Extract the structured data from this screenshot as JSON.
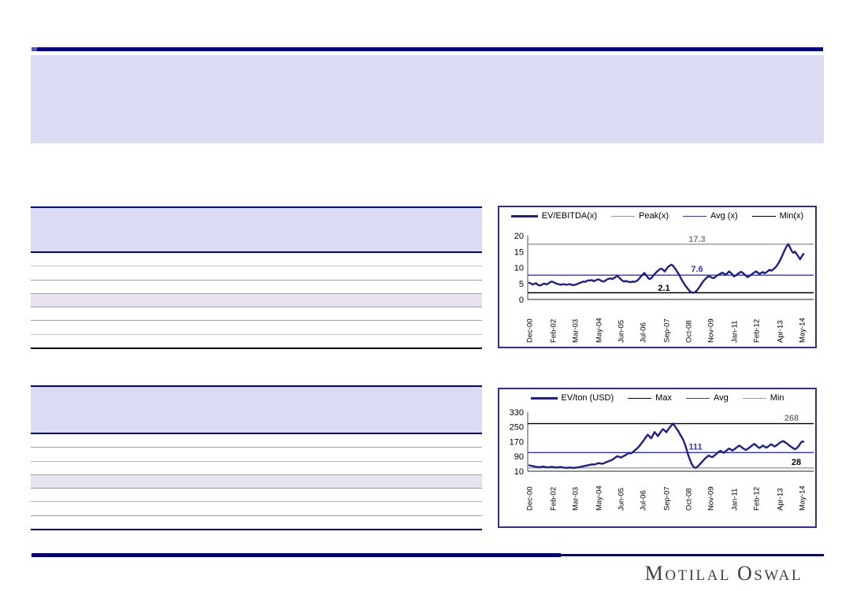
{
  "slide": {
    "banner_text": "",
    "logo": {
      "full_text": "MOTILAL OSWAL",
      "m1": "M",
      "r1": "OTILAL",
      "m2": "O",
      "r2": "SWAL"
    }
  },
  "colors": {
    "navy_rule": "#00008B",
    "banner_lavender": "#DBDBF5",
    "shaded_row": "#E7E3EE",
    "chart_border": "#2F2F9D",
    "series_navy": "#1F1F8C",
    "avg_blue": "#3333CC",
    "peak_gray": "#969696",
    "min_black": "#000000",
    "logo_charcoal": "#3E3E44"
  },
  "tables": [
    {
      "name": "upper-left-table",
      "header_text": "",
      "row_count": 7,
      "shaded_row_index": 3,
      "bottom_border": "black",
      "cells_visible": false
    },
    {
      "name": "lower-left-table",
      "header_text": "",
      "row_count": 7,
      "shaded_row_index": 3,
      "bottom_border": "navy",
      "cells_visible": false
    }
  ],
  "chart_data": [
    {
      "type": "line",
      "title": "",
      "legend": [
        {
          "label": "EV/EBITDA(x)",
          "color": "#1F1F8C",
          "thick": true
        },
        {
          "label": "Peak(x)",
          "color": "#969696",
          "thick": false
        },
        {
          "label": "Avg (x)",
          "color": "#3333CC",
          "thick": false
        },
        {
          "label": "Min(x)",
          "color": "#000000",
          "thick": false
        }
      ],
      "ylim": [
        0,
        20
      ],
      "yticks": [
        20,
        15,
        10,
        5,
        0
      ],
      "x_tick_labels": [
        "Dec-00",
        "Feb-02",
        "Mar-03",
        "May-04",
        "Jun-05",
        "Jul-06",
        "Sep-07",
        "Oct-08",
        "Nov-09",
        "Jan-11",
        "Feb-12",
        "Apr-13",
        "May-14"
      ],
      "x_tick_month_indices": [
        0,
        14,
        27,
        41,
        54,
        67,
        81,
        94,
        107,
        121,
        134,
        148,
        161
      ],
      "ref_lines": [
        {
          "name": "Peak(x)",
          "value": 17.3,
          "label": "17.3",
          "line_color": "#969696",
          "label_color": "#7F7F7F"
        },
        {
          "name": "Avg (x)",
          "value": 7.6,
          "label": "7.6",
          "line_color": "#3333CC",
          "label_color": "#3333CC"
        },
        {
          "name": "Min(x)",
          "value": 2.1,
          "label": "2.1",
          "line_color": "#000000",
          "label_color": "#000000"
        }
      ],
      "series": [
        {
          "name": "EV/EBITDA(x)",
          "color": "#1F1F8C",
          "values": [
            5.2,
            5.0,
            4.7,
            4.9,
            5.1,
            4.6,
            4.4,
            4.5,
            4.8,
            5.0,
            4.7,
            4.9,
            5.3,
            5.6,
            5.5,
            5.2,
            5.0,
            4.8,
            4.7,
            4.6,
            4.8,
            4.7,
            4.6,
            4.7,
            4.8,
            4.6,
            4.5,
            4.6,
            4.8,
            5.0,
            5.2,
            5.4,
            5.6,
            5.5,
            5.8,
            6.0,
            5.9,
            6.1,
            5.7,
            5.9,
            6.2,
            6.3,
            6.0,
            5.7,
            5.6,
            5.9,
            6.3,
            6.5,
            6.6,
            6.4,
            6.7,
            7.0,
            7.5,
            6.9,
            6.4,
            5.9,
            5.6,
            5.8,
            5.6,
            5.5,
            5.4,
            5.6,
            5.5,
            5.7,
            6.0,
            6.6,
            7.2,
            7.8,
            8.3,
            7.6,
            6.9,
            6.4,
            6.6,
            7.3,
            7.9,
            8.5,
            9.0,
            9.4,
            9.7,
            9.3,
            8.8,
            9.5,
            10.2,
            10.6,
            10.9,
            10.5,
            9.8,
            9.0,
            8.2,
            7.2,
            6.2,
            5.3,
            4.5,
            3.8,
            3.1,
            2.5,
            2.2,
            2.1,
            2.3,
            2.8,
            3.5,
            4.3,
            5.1,
            5.8,
            6.4,
            6.9,
            7.3,
            7.1,
            6.8,
            6.7,
            7.1,
            7.5,
            7.8,
            8.1,
            8.4,
            8.1,
            7.8,
            8.2,
            8.8,
            8.4,
            7.8,
            7.2,
            7.5,
            7.9,
            8.3,
            8.7,
            8.4,
            7.9,
            7.4,
            7.0,
            7.3,
            7.7,
            8.1,
            8.5,
            8.8,
            8.4,
            8.0,
            8.3,
            8.6,
            8.2,
            8.5,
            8.9,
            9.3,
            9.0,
            9.4,
            9.8,
            10.4,
            11.2,
            12.1,
            13.2,
            14.4,
            15.6,
            16.6,
            17.3,
            16.4,
            15.2,
            14.6,
            15.0,
            14.2,
            13.4,
            12.6,
            13.5,
            14.3
          ]
        }
      ]
    },
    {
      "type": "line",
      "title": "",
      "legend": [
        {
          "label": "EV/ton (USD)",
          "color": "#1F1F8C",
          "thick": true
        },
        {
          "label": "Max",
          "color": "#000000",
          "thick": false
        },
        {
          "label": "Avg",
          "color": "#3333CC",
          "thick": false
        },
        {
          "label": "Min",
          "color": "#9A9A9A",
          "thick": false
        }
      ],
      "ylim": [
        10,
        330
      ],
      "yticks": [
        330,
        250,
        170,
        90,
        10
      ],
      "x_tick_labels": [
        "Dec-00",
        "Feb-02",
        "Mar-03",
        "May-04",
        "Jun-05",
        "Jul-06",
        "Sep-07",
        "Oct-08",
        "Nov-09",
        "Jan-11",
        "Feb-12",
        "Apr-13",
        "May-14"
      ],
      "x_tick_month_indices": [
        0,
        14,
        27,
        41,
        54,
        67,
        81,
        94,
        107,
        121,
        134,
        148,
        161
      ],
      "ref_lines": [
        {
          "name": "Max",
          "value": 268,
          "label": "268",
          "line_color": "#000000",
          "label_color": "#7F7F7F"
        },
        {
          "name": "Avg",
          "value": 111,
          "label": "111",
          "line_color": "#3333CC",
          "label_color": "#3333CC"
        },
        {
          "name": "Min",
          "value": 28,
          "label": "28",
          "line_color": "#9A9A9A",
          "label_color": "#000000"
        }
      ],
      "series": [
        {
          "name": "EV/ton (USD)",
          "color": "#1F1F8C",
          "values": [
            42,
            40,
            38,
            36,
            34,
            33,
            32,
            33,
            35,
            34,
            32,
            31,
            32,
            34,
            33,
            31,
            30,
            31,
            33,
            32,
            30,
            29,
            28,
            29,
            30,
            29,
            28,
            29,
            30,
            31,
            33,
            35,
            37,
            39,
            41,
            43,
            45,
            47,
            46,
            48,
            51,
            54,
            52,
            50,
            53,
            57,
            61,
            65,
            68,
            72,
            78,
            85,
            92,
            88,
            84,
            88,
            93,
            98,
            104,
            110,
            106,
            112,
            120,
            128,
            136,
            146,
            158,
            170,
            182,
            196,
            208,
            199,
            188,
            204,
            222,
            212,
            200,
            214,
            228,
            238,
            230,
            221,
            235,
            248,
            258,
            268,
            255,
            240,
            228,
            210,
            195,
            178,
            155,
            125,
            95,
            70,
            48,
            34,
            28,
            32,
            40,
            50,
            60,
            70,
            80,
            88,
            95,
            90,
            86,
            92,
            100,
            108,
            115,
            121,
            115,
            110,
            118,
            126,
            133,
            128,
            122,
            128,
            135,
            142,
            149,
            143,
            136,
            130,
            125,
            131,
            138,
            145,
            152,
            158,
            150,
            142,
            136,
            142,
            149,
            143,
            137,
            143,
            150,
            156,
            150,
            144,
            150,
            157,
            163,
            170,
            173,
            168,
            161,
            154,
            147,
            140,
            134,
            129,
            135,
            145,
            158,
            170,
            170
          ]
        }
      ]
    }
  ]
}
